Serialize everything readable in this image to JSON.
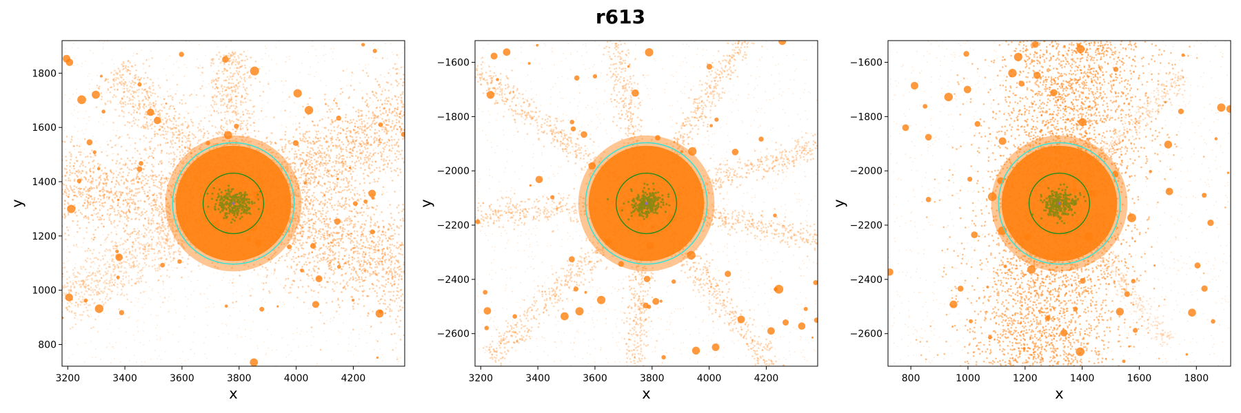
{
  "figure": {
    "title": "r613"
  },
  "colors": {
    "particles": "#ff7f0e",
    "outer_circle": "#40e0d0",
    "inner_circle": "#1e8c1e",
    "core": "#8a8a14",
    "center": "#9467bd"
  },
  "chart_data": [
    {
      "type": "scatter",
      "xlabel": "x",
      "ylabel": "y",
      "xlim": [
        3180,
        4380
      ],
      "ylim": [
        720,
        1920
      ],
      "xticks": [
        3200,
        3400,
        3600,
        3800,
        4000,
        4200
      ],
      "yticks": [
        800,
        1000,
        1200,
        1400,
        1600,
        1800
      ],
      "center": [
        3780,
        1320
      ],
      "outer_radius": 213,
      "inner_radius": 106,
      "grid": false
    },
    {
      "type": "scatter",
      "xlabel": "x",
      "ylabel": "y",
      "xlim": [
        3180,
        4380
      ],
      "ylim": [
        -2720,
        -1520
      ],
      "xticks": [
        3200,
        3400,
        3600,
        3800,
        4000,
        4200
      ],
      "yticks": [
        -2600,
        -2400,
        -2200,
        -2000,
        -1800,
        -1600
      ],
      "center": [
        3780,
        -2120
      ],
      "outer_radius": 213,
      "inner_radius": 106,
      "grid": false
    },
    {
      "type": "scatter",
      "xlabel": "x",
      "ylabel": "y",
      "xlim": [
        720,
        1920
      ],
      "ylim": [
        -2720,
        -1520
      ],
      "xticks": [
        800,
        1000,
        1200,
        1400,
        1600,
        1800
      ],
      "yticks": [
        -2600,
        -2400,
        -2200,
        -2000,
        -1800,
        -1600
      ],
      "center": [
        1320,
        -2120
      ],
      "outer_radius": 213,
      "inner_radius": 106,
      "grid": false
    }
  ]
}
